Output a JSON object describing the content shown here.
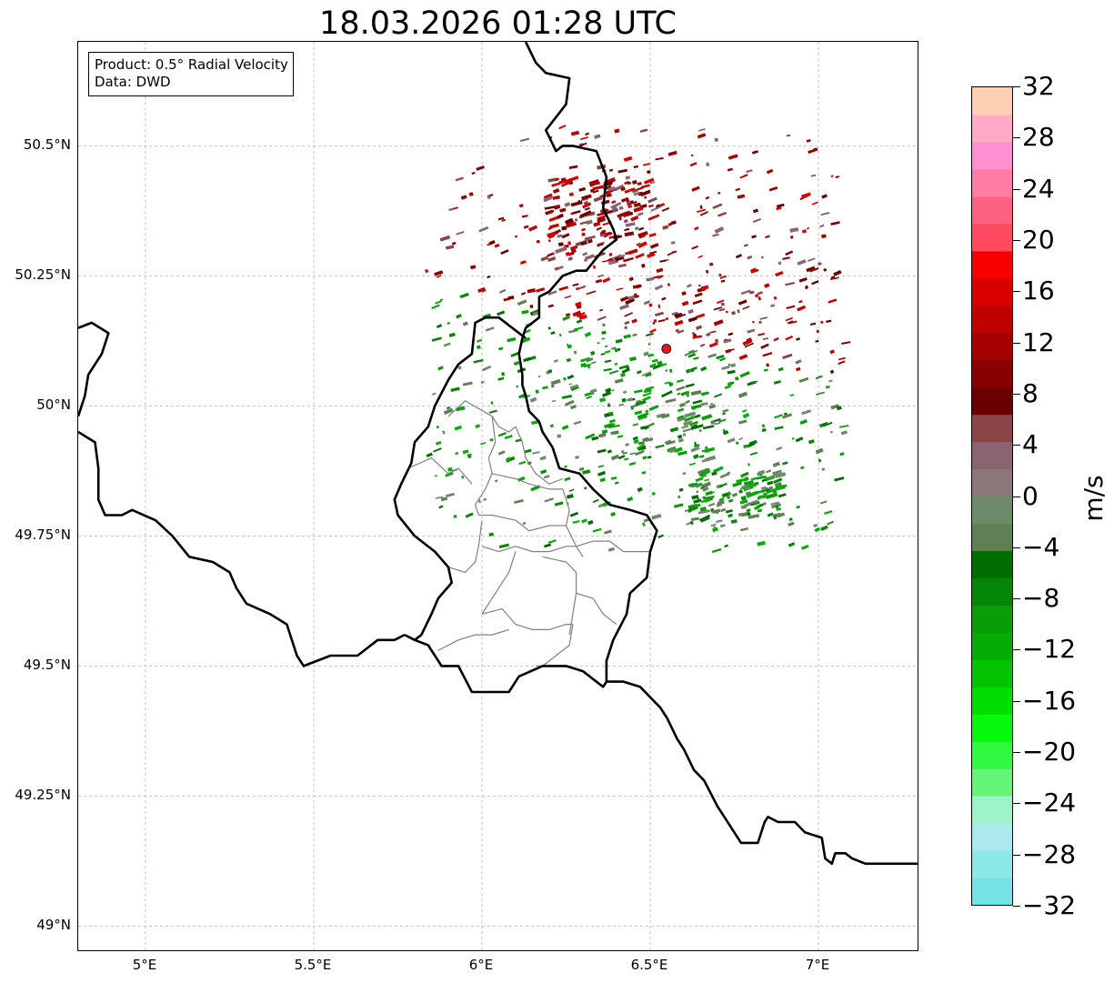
{
  "title": "18.03.2026 01:28 UTC",
  "info": {
    "product": "Product: 0.5° Radial Velocity",
    "data": "Data: DWD"
  },
  "map": {
    "extent": {
      "lon_min": 4.8,
      "lon_max": 7.3,
      "lat_min": 48.95,
      "lat_max": 50.7
    },
    "lat_ticks": [
      {
        "value": 50.5,
        "label": "50.5°N"
      },
      {
        "value": 50.25,
        "label": "50.25°N"
      },
      {
        "value": 50.0,
        "label": "50°N"
      },
      {
        "value": 49.75,
        "label": "49.75°N"
      },
      {
        "value": 49.5,
        "label": "49.5°N"
      },
      {
        "value": 49.25,
        "label": "49.25°N"
      },
      {
        "value": 49.0,
        "label": "49°N"
      }
    ],
    "lon_ticks": [
      {
        "value": 5.0,
        "label": "5°E"
      },
      {
        "value": 5.5,
        "label": "5.5°E"
      },
      {
        "value": 6.0,
        "label": "6°E"
      },
      {
        "value": 6.5,
        "label": "6.5°E"
      },
      {
        "value": 7.0,
        "label": "7°E"
      }
    ],
    "grid": true,
    "radar_site": {
      "lon": 6.548,
      "lat": 50.11,
      "color": "#e8141c"
    },
    "borders": {
      "color": "#000000",
      "lines": [
        [
          [
            6.13,
            50.7
          ],
          [
            6.16,
            50.66
          ],
          [
            6.19,
            50.64
          ],
          [
            6.26,
            50.63
          ],
          [
            6.25,
            50.58
          ],
          [
            6.19,
            50.53
          ],
          [
            6.22,
            50.49
          ],
          [
            6.24,
            50.5
          ],
          [
            6.27,
            50.5
          ],
          [
            6.34,
            50.49
          ],
          [
            6.37,
            50.44
          ],
          [
            6.36,
            50.38
          ],
          [
            6.39,
            50.34
          ],
          [
            6.4,
            50.32
          ],
          [
            6.36,
            50.3
          ],
          [
            6.31,
            50.26
          ],
          [
            6.28,
            50.26
          ],
          [
            6.24,
            50.25
          ],
          [
            6.2,
            50.22
          ],
          [
            6.17,
            50.21
          ],
          [
            6.17,
            50.17
          ],
          [
            6.13,
            50.15
          ],
          [
            6.12,
            50.13
          ],
          [
            6.11,
            50.1
          ],
          [
            6.12,
            50.06
          ],
          [
            6.12,
            50.04
          ],
          [
            6.13,
            50.02
          ],
          [
            6.14,
            49.99
          ],
          [
            6.17,
            49.97
          ],
          [
            6.18,
            49.95
          ],
          [
            6.21,
            49.92
          ],
          [
            6.23,
            49.88
          ],
          [
            6.29,
            49.87
          ],
          [
            6.33,
            49.84
          ],
          [
            6.38,
            49.81
          ],
          [
            6.44,
            49.8
          ],
          [
            6.49,
            49.79
          ],
          [
            6.52,
            49.76
          ],
          [
            6.5,
            49.72
          ],
          [
            6.49,
            49.67
          ],
          [
            6.44,
            49.64
          ],
          [
            6.43,
            49.6
          ],
          [
            6.39,
            49.55
          ],
          [
            6.37,
            49.51
          ],
          [
            6.37,
            49.47
          ]
        ],
        [
          [
            6.37,
            49.47
          ],
          [
            6.36,
            49.46
          ],
          [
            6.3,
            49.49
          ],
          [
            6.25,
            49.5
          ],
          [
            6.18,
            49.5
          ],
          [
            6.11,
            49.48
          ],
          [
            6.08,
            49.45
          ],
          [
            6.03,
            49.45
          ],
          [
            5.97,
            49.45
          ],
          [
            5.93,
            49.5
          ],
          [
            5.88,
            49.5
          ],
          [
            5.84,
            49.54
          ],
          [
            5.8,
            49.55
          ],
          [
            5.77,
            49.56
          ]
        ],
        [
          [
            5.77,
            49.56
          ],
          [
            5.74,
            49.55
          ],
          [
            5.69,
            49.55
          ],
          [
            5.63,
            49.52
          ],
          [
            5.55,
            49.52
          ],
          [
            5.47,
            49.5
          ],
          [
            5.45,
            49.52
          ],
          [
            5.42,
            49.58
          ],
          [
            5.37,
            49.6
          ],
          [
            5.3,
            49.62
          ],
          [
            5.27,
            49.65
          ],
          [
            5.25,
            49.68
          ],
          [
            5.2,
            49.7
          ],
          [
            5.13,
            49.71
          ],
          [
            5.08,
            49.75
          ],
          [
            5.03,
            49.78
          ],
          [
            4.96,
            49.8
          ],
          [
            4.93,
            49.79
          ],
          [
            4.88,
            49.79
          ],
          [
            4.86,
            49.82
          ],
          [
            4.86,
            49.88
          ],
          [
            4.85,
            49.93
          ],
          [
            4.8,
            49.95
          ]
        ],
        [
          [
            4.8,
            49.98
          ],
          [
            4.82,
            50.02
          ],
          [
            4.83,
            50.06
          ],
          [
            4.87,
            50.1
          ],
          [
            4.89,
            50.14
          ],
          [
            4.84,
            50.16
          ],
          [
            4.8,
            50.15
          ]
        ],
        [
          [
            6.13,
            50.13
          ],
          [
            6.05,
            50.17
          ],
          [
            6.01,
            50.17
          ],
          [
            5.98,
            50.16
          ],
          [
            5.97,
            50.1
          ],
          [
            5.93,
            50.08
          ],
          [
            5.9,
            50.05
          ],
          [
            5.86,
            50.0
          ],
          [
            5.84,
            49.96
          ],
          [
            5.8,
            49.93
          ],
          [
            5.79,
            49.89
          ],
          [
            5.76,
            49.85
          ],
          [
            5.74,
            49.82
          ],
          [
            5.75,
            49.79
          ],
          [
            5.8,
            49.75
          ],
          [
            5.86,
            49.72
          ],
          [
            5.9,
            49.69
          ],
          [
            5.91,
            49.66
          ],
          [
            5.87,
            49.63
          ],
          [
            5.85,
            49.6
          ],
          [
            5.82,
            49.56
          ],
          [
            5.8,
            49.55
          ]
        ],
        [
          [
            6.37,
            49.47
          ],
          [
            6.42,
            49.47
          ],
          [
            6.47,
            49.46
          ],
          [
            6.53,
            49.42
          ],
          [
            6.55,
            49.4
          ],
          [
            6.58,
            49.36
          ],
          [
            6.6,
            49.34
          ],
          [
            6.63,
            49.3
          ],
          [
            6.66,
            49.28
          ],
          [
            6.7,
            49.23
          ],
          [
            6.74,
            49.19
          ],
          [
            6.77,
            49.16
          ],
          [
            6.82,
            49.16
          ],
          [
            6.84,
            49.2
          ],
          [
            6.85,
            49.21
          ],
          [
            6.88,
            49.2
          ],
          [
            6.93,
            49.2
          ],
          [
            6.96,
            49.18
          ],
          [
            7.01,
            49.17
          ],
          [
            7.02,
            49.13
          ],
          [
            7.04,
            49.12
          ],
          [
            7.05,
            49.14
          ],
          [
            7.08,
            49.14
          ],
          [
            7.1,
            49.13
          ],
          [
            7.14,
            49.12
          ],
          [
            7.18,
            49.12
          ],
          [
            7.22,
            49.12
          ],
          [
            7.26,
            49.12
          ],
          [
            7.3,
            49.12
          ]
        ]
      ]
    },
    "districts": {
      "color": "#808080",
      "lines": [
        [
          [
            5.9,
            49.98
          ],
          [
            5.95,
            50.01
          ],
          [
            6.03,
            49.98
          ],
          [
            6.05,
            49.96
          ],
          [
            6.08,
            49.95
          ],
          [
            6.1,
            49.96
          ]
        ],
        [
          [
            5.78,
            49.88
          ],
          [
            5.85,
            49.9
          ],
          [
            5.9,
            49.87
          ],
          [
            5.93,
            49.88
          ],
          [
            5.97,
            49.85
          ]
        ],
        [
          [
            6.03,
            49.98
          ],
          [
            6.04,
            49.93
          ],
          [
            6.02,
            49.9
          ],
          [
            6.03,
            49.87
          ],
          [
            6.01,
            49.84
          ],
          [
            5.98,
            49.81
          ],
          [
            5.99,
            49.79
          ]
        ],
        [
          [
            6.1,
            49.96
          ],
          [
            6.12,
            49.93
          ],
          [
            6.13,
            49.9
          ],
          [
            6.16,
            49.87
          ],
          [
            6.2,
            49.85
          ],
          [
            6.24,
            49.86
          ]
        ],
        [
          [
            6.03,
            49.87
          ],
          [
            6.1,
            49.86
          ],
          [
            6.14,
            49.85
          ],
          [
            6.2,
            49.84
          ],
          [
            6.24,
            49.84
          ],
          [
            6.26,
            49.8
          ],
          [
            6.25,
            49.77
          ],
          [
            6.28,
            49.73
          ],
          [
            6.3,
            49.71
          ]
        ],
        [
          [
            5.99,
            49.79
          ],
          [
            6.03,
            49.79
          ],
          [
            6.1,
            49.78
          ],
          [
            6.14,
            49.76
          ],
          [
            6.2,
            49.77
          ],
          [
            6.25,
            49.77
          ]
        ],
        [
          [
            6.0,
            49.78
          ],
          [
            5.99,
            49.73
          ],
          [
            5.98,
            49.7
          ],
          [
            5.95,
            49.68
          ],
          [
            5.9,
            49.69
          ]
        ],
        [
          [
            6.0,
            49.73
          ],
          [
            6.05,
            49.72
          ],
          [
            6.1,
            49.73
          ],
          [
            6.15,
            49.72
          ],
          [
            6.2,
            49.72
          ],
          [
            6.25,
            49.73
          ],
          [
            6.28,
            49.73
          ]
        ],
        [
          [
            6.28,
            49.73
          ],
          [
            6.33,
            49.74
          ],
          [
            6.38,
            49.74
          ],
          [
            6.42,
            49.72
          ],
          [
            6.48,
            49.72
          ],
          [
            6.5,
            49.72
          ]
        ],
        [
          [
            6.1,
            49.72
          ],
          [
            6.08,
            49.68
          ],
          [
            6.05,
            49.65
          ],
          [
            6.02,
            49.62
          ],
          [
            6.0,
            49.6
          ]
        ],
        [
          [
            6.18,
            49.71
          ],
          [
            6.25,
            49.7
          ],
          [
            6.28,
            49.68
          ],
          [
            6.28,
            49.64
          ],
          [
            6.27,
            49.6
          ],
          [
            6.26,
            49.56
          ]
        ],
        [
          [
            6.28,
            49.64
          ],
          [
            6.33,
            49.63
          ],
          [
            6.36,
            49.6
          ],
          [
            6.4,
            49.58
          ]
        ],
        [
          [
            6.0,
            49.6
          ],
          [
            6.06,
            49.61
          ],
          [
            6.1,
            49.58
          ],
          [
            6.15,
            49.57
          ],
          [
            6.2,
            49.57
          ],
          [
            6.25,
            49.58
          ],
          [
            6.27,
            49.58
          ]
        ],
        [
          [
            6.27,
            49.58
          ],
          [
            6.26,
            49.54
          ],
          [
            6.22,
            49.52
          ],
          [
            6.18,
            49.5
          ],
          [
            6.16,
            49.5
          ]
        ],
        [
          [
            5.87,
            49.53
          ],
          [
            5.93,
            49.55
          ],
          [
            5.98,
            49.56
          ],
          [
            6.03,
            49.56
          ],
          [
            6.08,
            49.57
          ]
        ]
      ]
    }
  },
  "colorbar": {
    "label": "m/s",
    "vmin": -32,
    "vmax": 32,
    "ticks": [
      -32,
      -28,
      -24,
      -20,
      -16,
      -12,
      -8,
      -4,
      0,
      4,
      8,
      12,
      16,
      20,
      24,
      28,
      32
    ],
    "tick_labels": [
      "−32",
      "−28",
      "−24",
      "−20",
      "−16",
      "−12",
      "−8",
      "−4",
      "0",
      "4",
      "8",
      "12",
      "16",
      "20",
      "24",
      "28",
      "32"
    ],
    "colors": [
      "#76e4e6",
      "#8de8ea",
      "#aaeaec",
      "#9df4c8",
      "#66f57a",
      "#2ffa40",
      "#04fa0a",
      "#00de00",
      "#02c402",
      "#04ad04",
      "#0a9d0a",
      "#078507",
      "#006e00",
      "#5f7f55",
      "#6e8a6a",
      "#8a7978",
      "#8a6470",
      "#8a4549",
      "#6b0000",
      "#890000",
      "#a50000",
      "#c10000",
      "#da0000",
      "#f80000",
      "#ff4a60",
      "#ff6280",
      "#ff7ca3",
      "#ff8fcf",
      "#ffaac6",
      "#ffcfb4"
    ]
  }
}
